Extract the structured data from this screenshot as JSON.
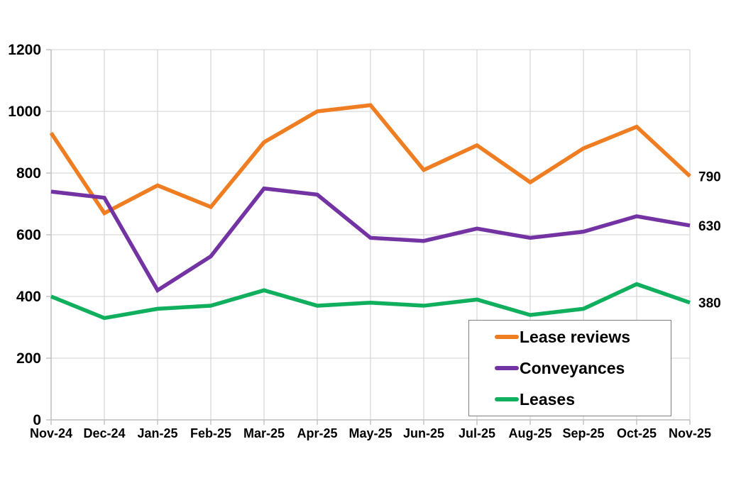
{
  "chart_data": {
    "type": "line",
    "title": "",
    "categories": [
      "Nov-24",
      "Dec-24",
      "Jan-25",
      "Feb-25",
      "Mar-25",
      "Apr-25",
      "May-25",
      "Jun-25",
      "Jul-25",
      "Aug-25",
      "Sep-25",
      "Oct-25",
      "Nov-25"
    ],
    "series": [
      {
        "name": "Lease reviews",
        "color": "#EF7D22",
        "values": [
          930,
          670,
          760,
          690,
          900,
          1000,
          1020,
          810,
          890,
          770,
          880,
          950,
          790
        ],
        "end_label": "790"
      },
      {
        "name": "Conveyances",
        "color": "#7333A2",
        "values": [
          740,
          720,
          420,
          530,
          750,
          730,
          590,
          580,
          620,
          590,
          610,
          660,
          630
        ],
        "end_label": "630"
      },
      {
        "name": "Leases",
        "color": "#10AF5E",
        "values": [
          400,
          330,
          360,
          370,
          420,
          370,
          380,
          370,
          390,
          340,
          360,
          440,
          380
        ],
        "end_label": "380"
      }
    ],
    "ylim": [
      0,
      1200
    ],
    "y_ticks": [
      0,
      200,
      400,
      600,
      800,
      1000,
      1200
    ],
    "grid": true,
    "legend_position": "inside-bottom-right",
    "gridline_color": "#D9D9D9",
    "axis_color": "#BFBFBF",
    "text_color": "#000000"
  }
}
